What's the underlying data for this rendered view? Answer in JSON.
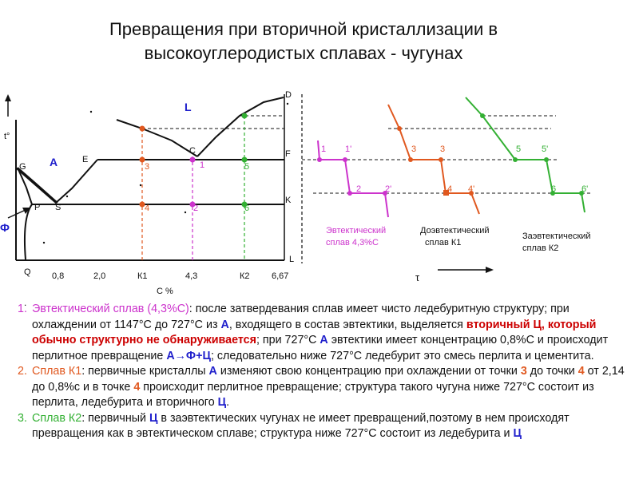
{
  "title": {
    "line1": "Превращения при вторичной кристаллизации в",
    "line2": "высокоуглеродистых сплавах - чугунах"
  },
  "phase_diagram": {
    "axis_y_label": "t°",
    "axis_phi_label": "Ф",
    "axis_x_label": "С %",
    "x_ticks": [
      "0,8",
      "2,0",
      "К1",
      "4,3",
      "К2",
      "6,67"
    ],
    "point_labels": {
      "G": "G",
      "E": "E",
      "C": "C",
      "D": "D",
      "F": "F",
      "K": "K",
      "P": "P",
      "S": "S",
      "Q": "Q",
      "L_bottom": "L"
    },
    "region_labels": {
      "liquid": "L",
      "austenite": "A"
    },
    "alloy_point_labels": {
      "k1_upper": "3",
      "k1_lower": "4",
      "eut_upper": "1",
      "eut_lower": "2",
      "k2_upper": "5",
      "k2_lower": "6"
    }
  },
  "cooling_curves": {
    "time_axis_label": "τ",
    "eutectic": {
      "label_a": "1",
      "label_b": "1'",
      "label_c": "2",
      "label_d": "2'",
      "caption_line1": "Эвтектический",
      "caption_line2": "сплав 4,3%С"
    },
    "hypoeutectic": {
      "label_a": "3",
      "label_b": "3",
      "label_c": "4",
      "label_d": "4'",
      "caption_line1": "Доэвтектический",
      "caption_line2": "сплав К1"
    },
    "hypereutectic": {
      "label_a": "5",
      "label_b": "5'",
      "label_c": "6",
      "label_d": "6'",
      "caption_line1": "Заэвтектический",
      "caption_line2": "сплав К2"
    }
  },
  "colors": {
    "eutectic": "#cc33cc",
    "hypoeutectic": "#e0581f",
    "hypereutectic": "#33b033",
    "emphasis": "#cc0000",
    "phase": "#2020cc"
  },
  "notes": {
    "n1": "1.",
    "n1_head": "Эвтектический сплав (4,3%С)",
    "n1_t1": ": после затвердевания сплав имеет чисто ледебуритную структуру; при охлаждении от 1147°С до 727°С из ",
    "n1_A": "А",
    "n1_t2": ", входящего в состав эвтектики, выделяется ",
    "n1_sec": "вторичный Ц, который обычно структурно не обнаруживается",
    "n1_t3": "; при 727°С ",
    "n1_A2": "А",
    "n1_t4": " эвтектики имеет концентрацию 0,8%С и происходит перлитное превращение ",
    "n1_eq": "А→Ф+Ц",
    "n1_t5": "; следовательно ниже 727°С ледебурит это смесь перлита и цементита.",
    "n2": "2.",
    "n2_head": "Сплав К1",
    "n2_t1": ": первичные кристаллы ",
    "n2_A": "А",
    "n2_t2": " изменяют свою концентрацию при охлаждении от точки ",
    "n2_p3": "3",
    "n2_t3": " до точки ",
    "n2_p4": "4",
    "n2_t4": " от 2,14 до 0,8%с и в точке ",
    "n2_p4b": "4",
    "n2_t5": " происходит перлитное превращение; структура такого чугуна ниже 727°С состоит из перлита, ледебурита и вторичного ",
    "n2_C": "Ц",
    "n2_t6": ".",
    "n3": "3.",
    "n3_head": "Сплав К2",
    "n3_t1": ": первичный ",
    "n3_C": "Ц",
    "n3_t2": " в заэвтектических чугунах не имеет превращений,поэтому в нем происходят превращения как в эвтектическом сплаве; структура ниже 727°С состоит из ледебурита и ",
    "n3_C2": "Ц",
    "n3_t3": ""
  }
}
